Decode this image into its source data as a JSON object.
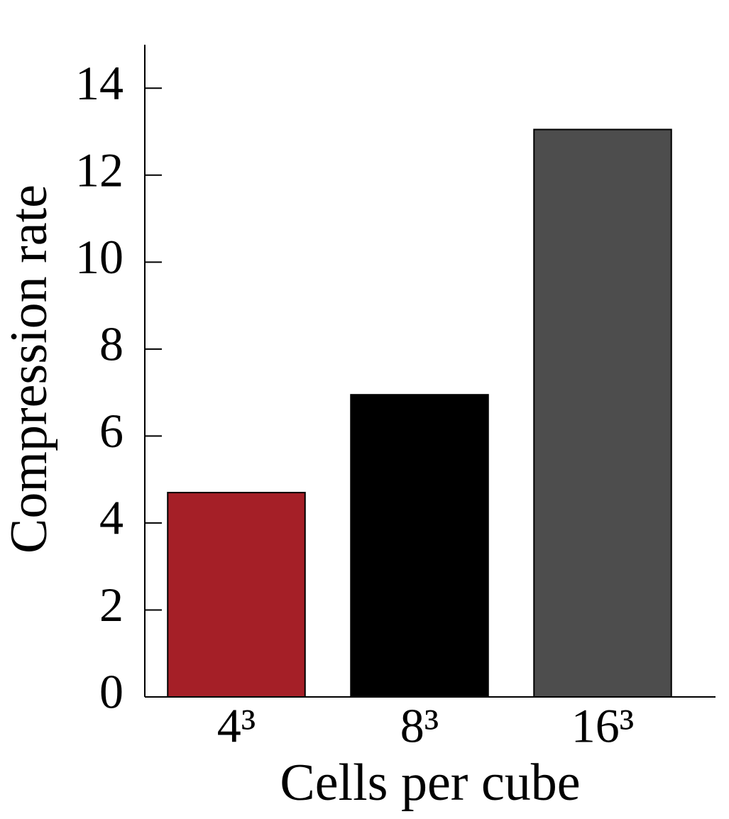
{
  "chart_data": {
    "type": "bar",
    "x_label": "Cells per cube",
    "y_label": "Compression rate",
    "categories": [
      "4³",
      "8³",
      "16³"
    ],
    "values": [
      4.7,
      6.95,
      13.05
    ],
    "colors": [
      "#a51f27",
      "#000000",
      "#4d4d4d"
    ],
    "ylim": [
      0,
      15
    ],
    "yticks": [
      0,
      2,
      4,
      6,
      8,
      10,
      12,
      14
    ],
    "grid": false
  }
}
